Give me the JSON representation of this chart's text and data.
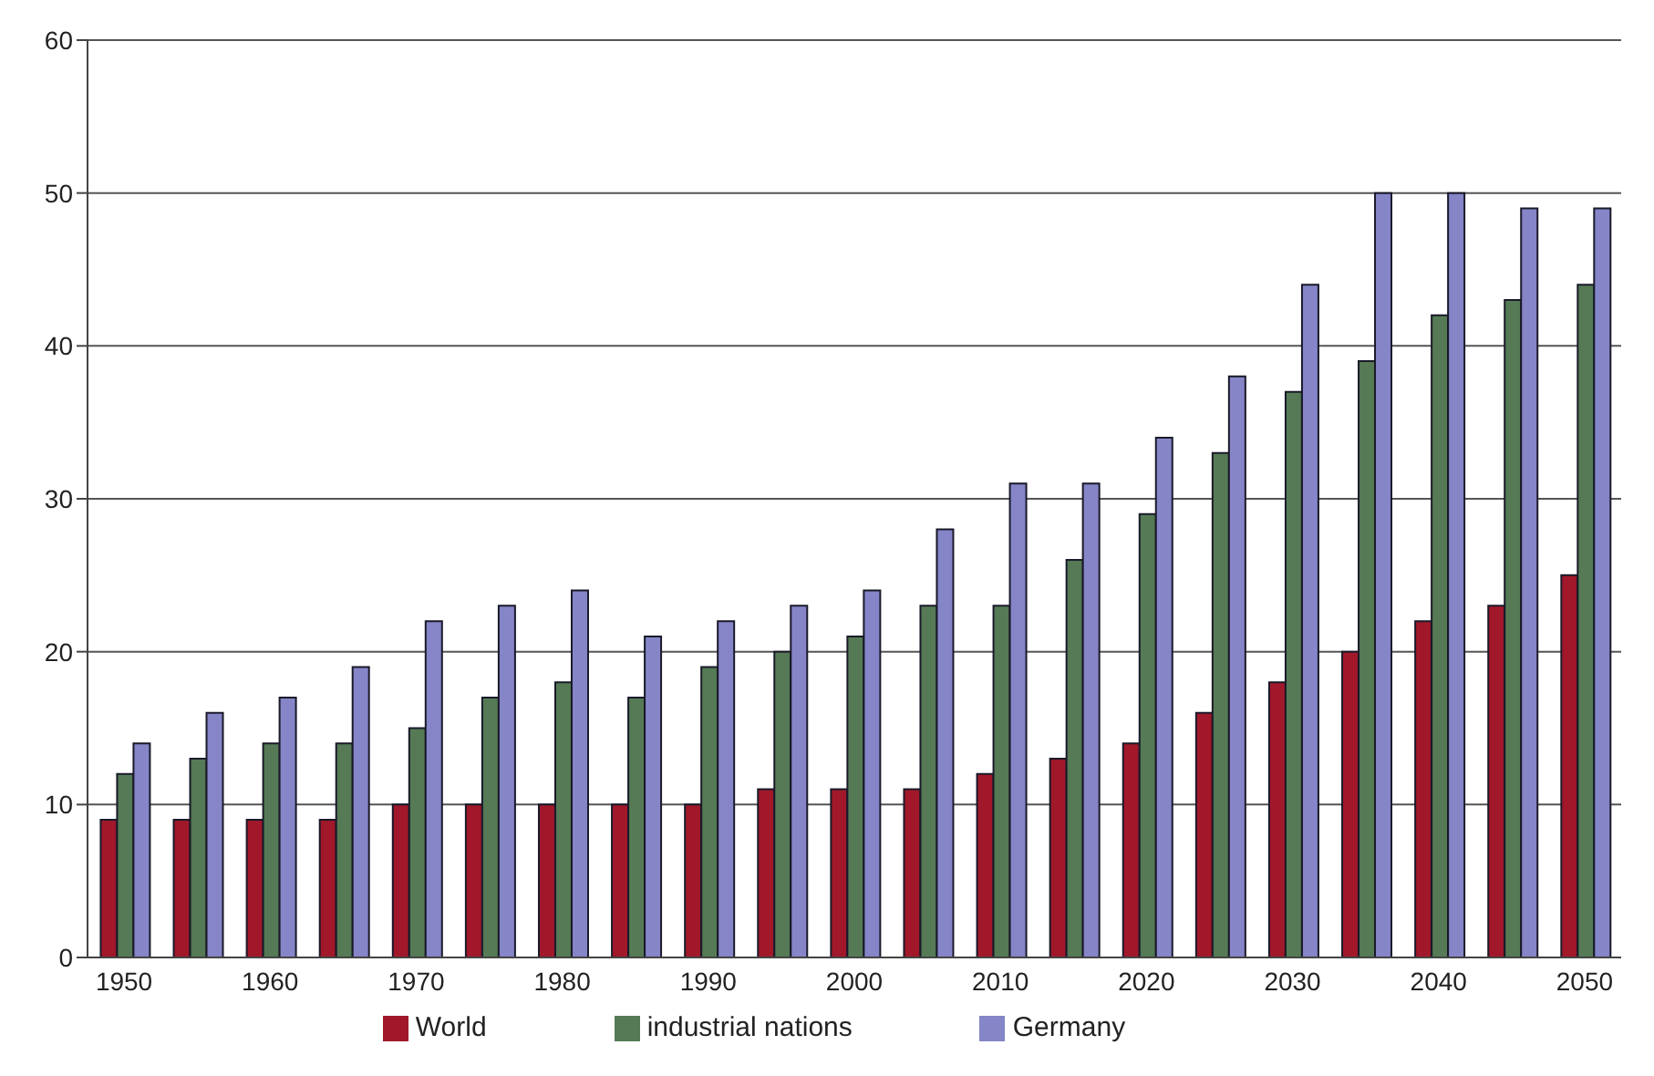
{
  "chart_data": {
    "type": "bar",
    "categories": [
      "1950",
      null,
      "1960",
      null,
      "1970",
      null,
      "1980",
      null,
      "1990",
      null,
      "2000",
      null,
      "2010",
      null,
      "2020",
      null,
      "2030",
      null,
      "2040",
      null,
      "2050"
    ],
    "series": [
      {
        "name": "World",
        "color": "#a0182a",
        "values": [
          9,
          9,
          9,
          9,
          10,
          10,
          10,
          10,
          10,
          11,
          11,
          11,
          12,
          13,
          14,
          16,
          18,
          20,
          22,
          23,
          25
        ]
      },
      {
        "name": "industrial nations",
        "color": "#557a55",
        "values": [
          12,
          13,
          14,
          14,
          15,
          17,
          18,
          17,
          19,
          20,
          21,
          23,
          23,
          26,
          29,
          33,
          37,
          39,
          42,
          43,
          44
        ]
      },
      {
        "name": "Germany",
        "color": "#8585c8",
        "values": [
          14,
          16,
          17,
          19,
          22,
          23,
          24,
          21,
          22,
          23,
          24,
          28,
          31,
          31,
          34,
          38,
          44,
          50,
          50,
          49,
          49
        ]
      }
    ],
    "ylim": [
      0,
      60
    ],
    "yticks": [
      0,
      10,
      20,
      30,
      40,
      50,
      60
    ],
    "grid": "y",
    "legend": "bottom"
  }
}
